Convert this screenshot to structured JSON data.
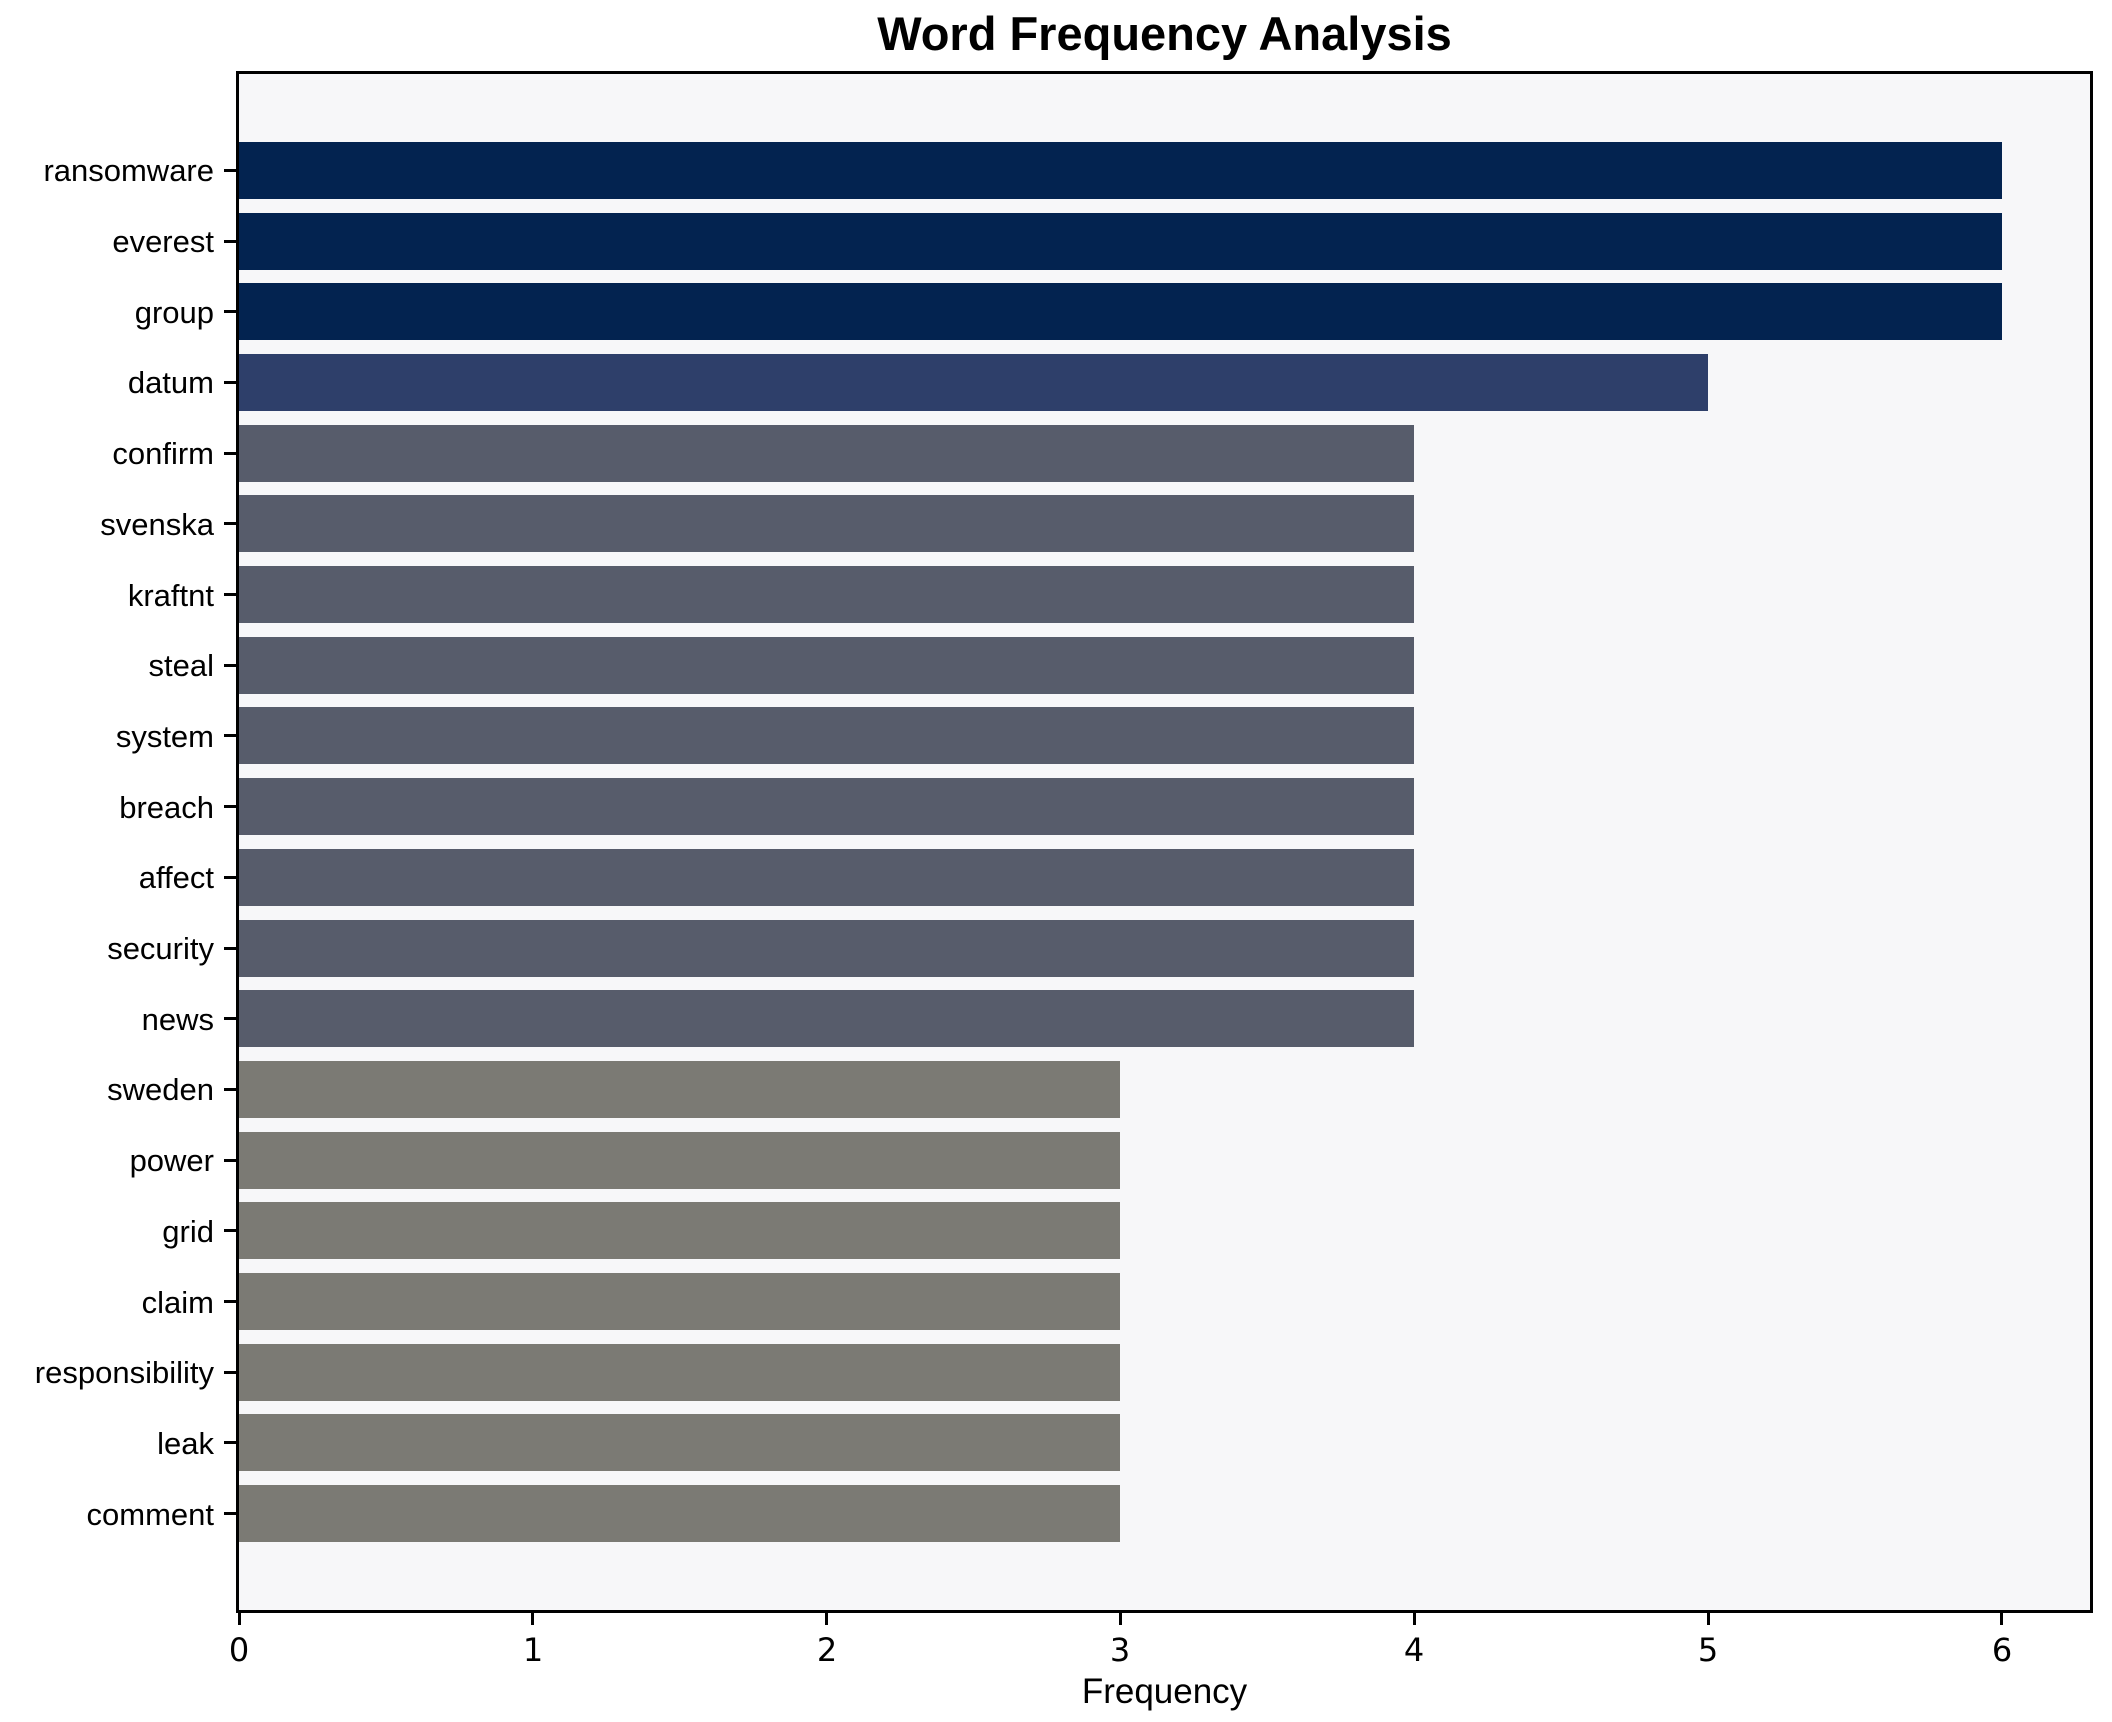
{
  "figure": {
    "background": "#ffffff",
    "plot_background": "#f7f7f9",
    "frame_color": "#000000",
    "text_color": "#000000"
  },
  "chart_data": {
    "type": "bar",
    "orientation": "horizontal",
    "title": "Word Frequency Analysis",
    "xlabel": "Frequency",
    "ylabel": "",
    "xlim": [
      0,
      6.3
    ],
    "xticks": [
      0,
      1,
      2,
      3,
      4,
      5,
      6
    ],
    "grid": false,
    "legend_position": "none",
    "categories": [
      "ransomware",
      "everest",
      "group",
      "datum",
      "confirm",
      "svenska",
      "kraftnt",
      "steal",
      "system",
      "breach",
      "affect",
      "security",
      "news",
      "sweden",
      "power",
      "grid",
      "claim",
      "responsibility",
      "leak",
      "comment"
    ],
    "values": [
      6,
      6,
      6,
      5,
      4,
      4,
      4,
      4,
      4,
      4,
      4,
      4,
      4,
      3,
      3,
      3,
      3,
      3,
      3,
      3
    ],
    "bar_colors_by_value": {
      "6": "#032350",
      "5": "#2e3f6a",
      "4": "#575c6b",
      "3": "#7b7a74"
    }
  }
}
